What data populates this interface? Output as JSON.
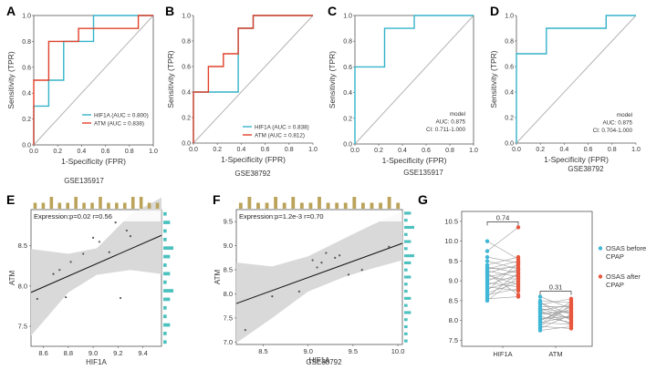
{
  "colors": {
    "hif1a": "#35b3c9",
    "atm": "#e0402a",
    "diag": "#b3b3b3",
    "band": "#d9d9d9",
    "histTop": "#bba35a",
    "histRight": "#4cc1be",
    "dotBefore": "#3fb7d6",
    "dotAfter": "#e8573d",
    "pairLine": "#9c9c9c"
  },
  "chart_data": [
    {
      "panel": "A",
      "type": "line",
      "subtitle": "GSE135917",
      "xlabel": "1-Specificity (FPR)",
      "ylabel": "Sensitivity (TPR)",
      "ticks": [
        "0.0",
        "0.2",
        "0.4",
        "0.6",
        "0.8",
        "1.0"
      ],
      "xlim": [
        0,
        1
      ],
      "ylim": [
        0,
        1
      ],
      "legend": [
        "HIF1A (AUC = 0.800)",
        "ATM (AUC = 0.838)"
      ],
      "series": [
        {
          "name": "HIF1A",
          "x": [
            0,
            0,
            0.125,
            0.125,
            0.25,
            0.25,
            0.5,
            0.5,
            1,
            1
          ],
          "y": [
            0,
            0.3,
            0.3,
            0.5,
            0.5,
            0.8,
            0.8,
            1,
            1,
            1
          ]
        },
        {
          "name": "ATM",
          "x": [
            0,
            0,
            0.125,
            0.125,
            0.375,
            0.375,
            0.875,
            0.875,
            1
          ],
          "y": [
            0,
            0.5,
            0.5,
            0.8,
            0.8,
            0.9,
            0.9,
            1,
            1
          ]
        }
      ]
    },
    {
      "panel": "B",
      "type": "line",
      "subtitle": "GSE38792",
      "xlabel": "1-Specificity (FPR)",
      "ylabel": "Sensitivity (TPR)",
      "ticks": [
        "0.0",
        "0.2",
        "0.4",
        "0.6",
        "0.8",
        "1.0"
      ],
      "xlim": [
        0,
        1
      ],
      "ylim": [
        0,
        1
      ],
      "legend": [
        "HIF1A (AUC = 0.838)",
        "ATM (AUC = 0.812)"
      ],
      "series": [
        {
          "name": "HIF1A",
          "x": [
            0,
            0,
            0.375,
            0.375,
            0.5,
            0.5,
            0.625,
            0.625,
            1
          ],
          "y": [
            0,
            0.4,
            0.4,
            0.9,
            0.9,
            1,
            1,
            1,
            1
          ]
        },
        {
          "name": "ATM",
          "x": [
            0,
            0,
            0.125,
            0.125,
            0.25,
            0.25,
            0.375,
            0.375,
            0.5,
            0.5,
            1
          ],
          "y": [
            0,
            0.4,
            0.4,
            0.6,
            0.6,
            0.7,
            0.7,
            0.9,
            0.9,
            1,
            1
          ]
        }
      ]
    },
    {
      "panel": "C",
      "type": "line",
      "subtitle": "GSE135917",
      "xlabel": "1-Specificity (FPR)",
      "ylabel": "Sensitivity (TPR)",
      "ticks": [
        "0.0",
        "0.2",
        "0.4",
        "0.6",
        "0.8",
        "1.0"
      ],
      "xlim": [
        0,
        1
      ],
      "ylim": [
        0,
        1
      ],
      "annotation": [
        "model",
        "AUC: 0.875",
        "CI: 0.711-1.000"
      ],
      "series": [
        {
          "name": "model",
          "x": [
            0,
            0,
            0.25,
            0.25,
            0.5,
            0.5,
            1
          ],
          "y": [
            0,
            0.6,
            0.6,
            0.9,
            0.9,
            1,
            1
          ]
        }
      ]
    },
    {
      "panel": "D",
      "type": "line",
      "subtitle": "GSE38792",
      "xlabel": "1-Specificity (FPR)",
      "ylabel": "Sensitivity (TPR)",
      "ticks": [
        "0.0",
        "0.2",
        "0.4",
        "0.6",
        "0.8",
        "1.0"
      ],
      "xlim": [
        0,
        1
      ],
      "ylim": [
        0,
        1
      ],
      "annotation": [
        "model",
        "AUC: 0.875",
        "CI: 0.704-1.000"
      ],
      "series": [
        {
          "name": "model",
          "x": [
            0,
            0,
            0.25,
            0.25,
            0.75,
            0.75,
            1
          ],
          "y": [
            0,
            0.7,
            0.7,
            0.9,
            0.9,
            1,
            1
          ]
        }
      ]
    },
    {
      "panel": "E",
      "type": "scatter",
      "xlabel": "HIF1A",
      "ylabel": "ATM",
      "stat": "Expression:p=0.02  r=0.56",
      "xticks": [
        "8.6",
        "8.8",
        "9.0",
        "9.2",
        "9.4"
      ],
      "xtickValues": [
        8.6,
        8.8,
        9.0,
        9.2,
        9.4
      ],
      "yticks": [
        "7.5",
        "8.0",
        "8.5"
      ],
      "ytickValues": [
        7.5,
        8.0,
        8.5
      ],
      "xlim": [
        8.5,
        9.55
      ],
      "ylim": [
        7.25,
        8.95
      ],
      "fit": {
        "x": [
          8.5,
          9.55
        ],
        "y": [
          7.92,
          8.63
        ]
      },
      "band": {
        "x": [
          8.5,
          8.8,
          9.03,
          9.3,
          9.55
        ],
        "lower": [
          7.38,
          7.92,
          8.14,
          8.2,
          8.15
        ],
        "upper": [
          8.46,
          8.4,
          8.47,
          8.89,
          9.1
        ]
      },
      "points": {
        "x": [
          8.55,
          8.68,
          8.73,
          8.78,
          8.82,
          8.92,
          9.0,
          9.05,
          9.13,
          9.18,
          9.22,
          9.27,
          9.3
        ],
        "y": [
          7.84,
          8.15,
          8.2,
          7.86,
          8.3,
          8.4,
          8.6,
          8.55,
          8.42,
          8.79,
          7.85,
          8.69,
          8.62
        ]
      },
      "histTop": [
        1,
        1,
        2,
        1,
        1,
        2,
        1,
        1,
        2,
        1,
        1,
        1,
        2,
        2,
        1,
        1
      ],
      "histRight": [
        1,
        2,
        1,
        1,
        3,
        2,
        1,
        2,
        1,
        3,
        2,
        1,
        1,
        2,
        1,
        1
      ]
    },
    {
      "panel": "F",
      "type": "scatter",
      "subtitle": "GSE38792",
      "xlabel": "HIF1A",
      "ylabel": "ATM",
      "stat": "Expression:p=1.2e-3  r=0.70",
      "xticks": [
        "8.5",
        "9.0",
        "9.5",
        "10.0"
      ],
      "xtickValues": [
        8.5,
        9.0,
        9.5,
        10.0
      ],
      "yticks": [
        "7.0",
        "7.5",
        "8.0",
        "8.5",
        "9.0",
        "9.5"
      ],
      "ytickValues": [
        7.0,
        7.5,
        8.0,
        8.5,
        9.0,
        9.5
      ],
      "xlim": [
        8.2,
        10.05
      ],
      "ylim": [
        6.95,
        9.75
      ],
      "fit": {
        "x": [
          8.2,
          10.05
        ],
        "y": [
          7.8,
          9.05
        ]
      },
      "band": {
        "x": [
          8.2,
          8.6,
          9.0,
          9.4,
          9.7,
          10.05
        ],
        "lower": [
          6.98,
          7.5,
          8.05,
          8.35,
          8.52,
          8.7
        ],
        "upper": [
          8.65,
          8.57,
          8.78,
          9.15,
          9.42,
          9.72
        ]
      },
      "points": {
        "x": [
          8.3,
          8.6,
          8.9,
          9.05,
          9.1,
          9.15,
          9.2,
          9.3,
          9.35,
          9.45,
          9.6,
          9.9
        ],
        "y": [
          7.25,
          7.95,
          8.05,
          8.7,
          8.55,
          8.65,
          8.85,
          8.75,
          8.8,
          8.4,
          8.5,
          8.98
        ]
      },
      "histTop": [
        1,
        2,
        1,
        1,
        2,
        1,
        2,
        1,
        1,
        2,
        1,
        1,
        1,
        2,
        1,
        1,
        1,
        2,
        1
      ],
      "histRight": [
        2,
        1,
        3,
        1,
        2,
        1,
        3,
        2,
        1,
        2,
        1,
        1,
        2,
        1,
        2,
        1,
        1,
        1,
        1
      ]
    },
    {
      "panel": "G",
      "type": "scatter",
      "categories": [
        "HIF1A",
        "ATM"
      ],
      "yticks": [
        "7.5",
        "8.0",
        "8.5",
        "9.0",
        "9.5",
        "10.0",
        "10.5"
      ],
      "ytickValues": [
        7.5,
        8.0,
        8.5,
        9.0,
        9.5,
        10.0,
        10.5
      ],
      "ylim": [
        7.35,
        10.75
      ],
      "pvalues": [
        "0.74",
        "0.31"
      ],
      "legend": [
        "OSAS before CPAP",
        "OSAS after CPAP"
      ],
      "series": [
        {
          "name": "HIF1A before",
          "values": [
            10.0,
            9.75,
            9.6,
            9.5,
            9.4,
            9.35,
            9.3,
            9.25,
            9.2,
            9.15,
            9.1,
            9.05,
            9.0,
            8.95,
            8.9,
            8.85,
            8.8,
            8.75,
            8.7,
            8.65,
            8.6,
            8.55,
            8.5,
            9.2,
            9.3
          ]
        },
        {
          "name": "HIF1A after",
          "values": [
            9.55,
            10.35,
            9.45,
            9.3,
            9.6,
            9.2,
            9.5,
            9.1,
            9.4,
            8.9,
            9.25,
            9.05,
            9.3,
            8.85,
            9.15,
            8.75,
            9.0,
            9.45,
            8.95,
            8.8,
            9.2,
            8.6,
            9.1,
            8.65,
            9.35
          ]
        },
        {
          "name": "ATM before",
          "values": [
            8.6,
            8.5,
            8.45,
            8.4,
            8.35,
            8.3,
            8.25,
            8.2,
            8.15,
            8.1,
            8.05,
            8.0,
            7.95,
            7.9,
            7.85,
            7.8,
            7.75,
            8.3,
            8.2,
            8.1,
            8.0,
            8.45,
            7.85,
            8.25,
            7.95
          ]
        },
        {
          "name": "ATM after",
          "values": [
            8.3,
            8.45,
            8.15,
            8.55,
            8.35,
            8.2,
            8.4,
            8.05,
            8.25,
            7.95,
            8.1,
            8.3,
            7.9,
            8.5,
            7.8,
            8.15,
            7.85,
            8.05,
            8.2,
            7.95,
            8.35,
            8.0,
            8.4,
            7.9,
            8.1
          ]
        }
      ]
    }
  ]
}
